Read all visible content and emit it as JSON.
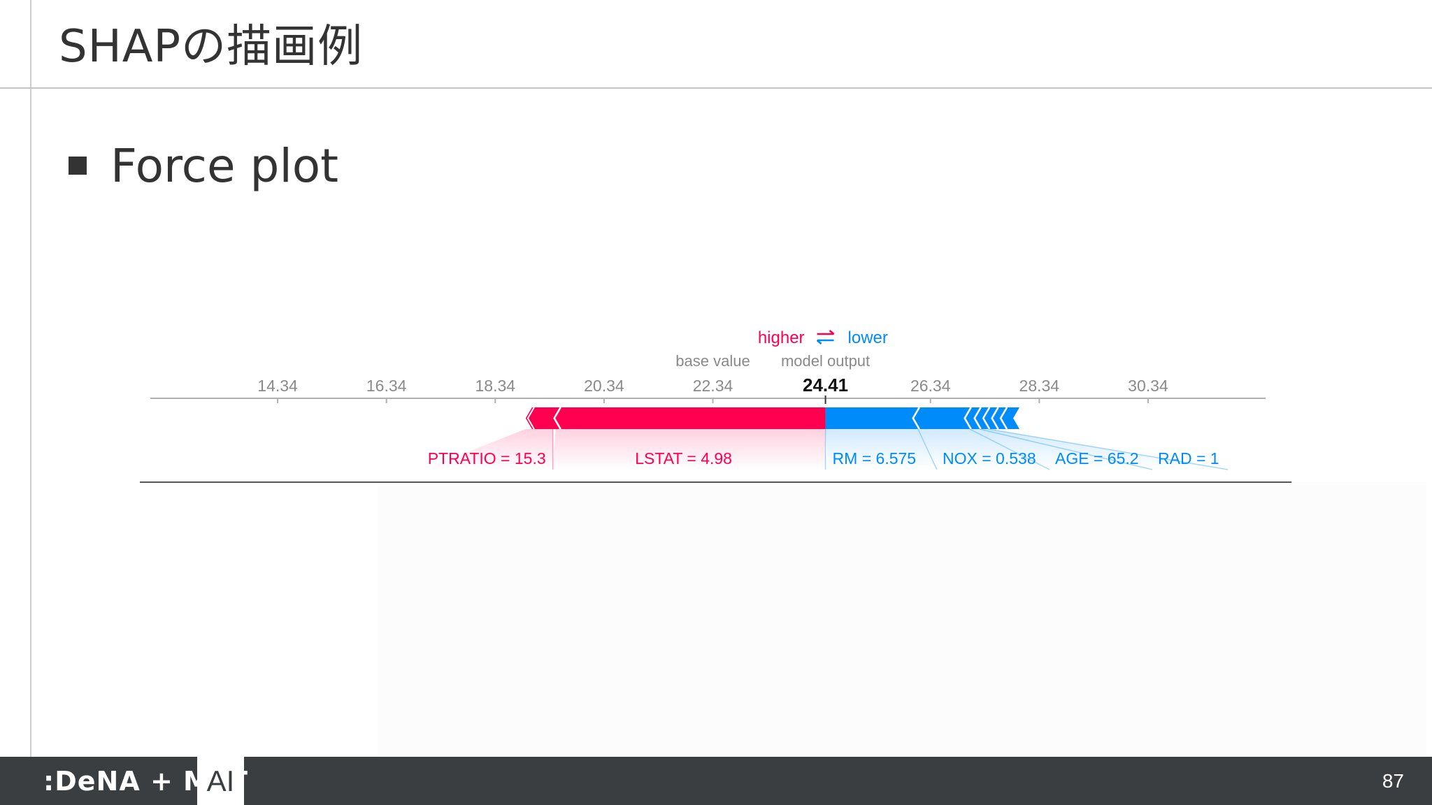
{
  "slide": {
    "title": "SHAPの描画例",
    "bullet": "Force plot",
    "page_number": "87"
  },
  "footer": {
    "logo_text": ":DeNA + MoT",
    "ai_label": "AI"
  },
  "chart_data": {
    "type": "force",
    "ticks": [
      14.34,
      16.34,
      18.34,
      20.34,
      22.34,
      26.34,
      28.34,
      30.34
    ],
    "tick_labels": [
      "14.34",
      "16.34",
      "18.34",
      "20.34",
      "22.34",
      "26.34",
      "28.34",
      "30.34"
    ],
    "base_value": 22.34,
    "model_output": 24.41,
    "xlim": [
      12.0,
      32.5
    ],
    "legend": {
      "higher": "higher",
      "lower": "lower"
    },
    "base_value_label": "base value",
    "model_output_label": "model output",
    "model_output_text": "24.41",
    "higher_color": "#ff0051",
    "lower_color": "#008bfb",
    "positive_features": [
      {
        "label": "LSTAT = 4.98",
        "value": 4.96
      },
      {
        "label": "PTRATIO = 15.3",
        "value": 0.55
      }
    ],
    "negative_features": [
      {
        "label": "RM = 6.575",
        "value": 1.7
      },
      {
        "label": "NOX = 0.538",
        "value": 0.95
      },
      {
        "label": "AGE = 65.2",
        "value": 0.18
      },
      {
        "label": "RAD = 1",
        "value": 0.16
      },
      {
        "label": "",
        "value": 0.16
      },
      {
        "label": "",
        "value": 0.16
      },
      {
        "label": "",
        "value": 0.14
      }
    ]
  }
}
